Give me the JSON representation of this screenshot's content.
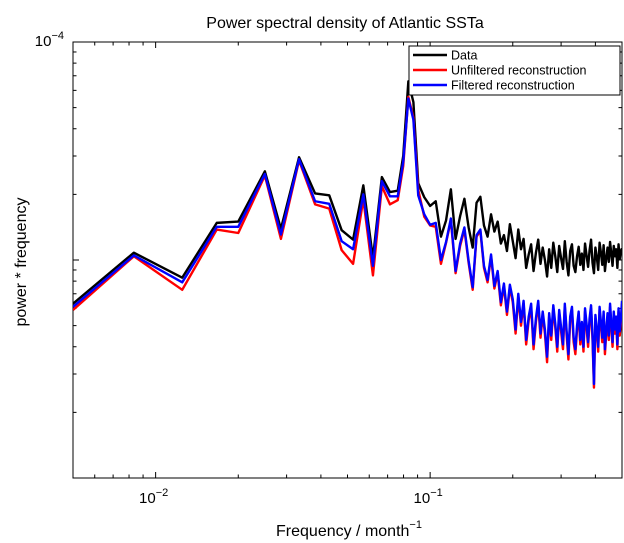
{
  "chart_data": {
    "type": "line",
    "title": "Power spectral density of Atlantic SSTa",
    "xlabel": "Frequency / month",
    "xlabel_sup": "−1",
    "ylabel": "power * frequency",
    "x_scale": "log",
    "y_scale": "log",
    "xlim": [
      0.005,
      0.5
    ],
    "ylim": [
      1e-06,
      0.0001
    ],
    "x_ticks": [
      {
        "value": 0.01,
        "base": "10",
        "exp": "−2"
      },
      {
        "value": 0.1,
        "base": "10",
        "exp": "−1"
      }
    ],
    "y_ticks": [
      {
        "value": 0.0001,
        "base": "10",
        "exp": "−4"
      }
    ],
    "grid": false,
    "legend_position": "top-right",
    "series": [
      {
        "name": "Data",
        "color": "#000000",
        "x": [
          0.005,
          0.00833,
          0.0125,
          0.0167,
          0.02,
          0.025,
          0.0286,
          0.0333,
          0.0381,
          0.0429,
          0.0476,
          0.0524,
          0.0571,
          0.0619,
          0.0667,
          0.0714,
          0.0762,
          0.0798,
          0.0833,
          0.0869,
          0.0905,
          0.0952,
          0.1,
          0.1048,
          0.1095,
          0.1143,
          0.119,
          0.1238,
          0.1286,
          0.1333,
          0.1381,
          0.1429,
          0.1476,
          0.1524,
          0.1571,
          0.1619,
          0.1667,
          0.1714,
          0.1762,
          0.181,
          0.1857,
          0.1905,
          0.1952,
          0.2,
          0.2048,
          0.2095,
          0.2143,
          0.219,
          0.2238,
          0.2286,
          0.2333,
          0.2381,
          0.2429,
          0.2476,
          0.2524,
          0.2571,
          0.2619,
          0.2667,
          0.2714,
          0.2762,
          0.281,
          0.2857,
          0.2905,
          0.2952,
          0.3,
          0.3048,
          0.3095,
          0.3143,
          0.319,
          0.3238,
          0.3286,
          0.3333,
          0.3381,
          0.3429,
          0.3476,
          0.3524,
          0.3571,
          0.3619,
          0.3667,
          0.3714,
          0.3762,
          0.381,
          0.3857,
          0.3905,
          0.3952,
          0.4,
          0.4048,
          0.4095,
          0.4143,
          0.419,
          0.4238,
          0.4286,
          0.4333,
          0.4381,
          0.4429,
          0.4476,
          0.4524,
          0.4571,
          0.4619,
          0.4667,
          0.4714,
          0.4762,
          0.481,
          0.4857,
          0.4905,
          0.4952,
          0.5
        ],
        "values": [
          6.3e-06,
          1.08e-05,
          8.3e-06,
          1.48e-05,
          1.5e-05,
          2.55e-05,
          1.39e-05,
          2.96e-05,
          2.02e-05,
          1.98e-05,
          1.37e-05,
          1.24e-05,
          2.2e-05,
          1.02e-05,
          2.4e-05,
          2.05e-05,
          2.08e-05,
          3e-05,
          6.6e-05,
          5.3e-05,
          2.25e-05,
          1.94e-05,
          1.77e-05,
          1.86e-05,
          1.28e-05,
          1.52e-05,
          2.11e-05,
          1.25e-05,
          1.59e-05,
          1.91e-05,
          1.41e-05,
          1.14e-05,
          1.83e-05,
          1.95e-05,
          1.44e-05,
          1.28e-05,
          1.62e-05,
          1.35e-05,
          1.5e-05,
          1.19e-05,
          1.3e-05,
          1.1e-05,
          1.46e-05,
          1.22e-05,
          1.02e-05,
          1.38e-05,
          1.12e-05,
          1.25e-05,
          9.2e-06,
          1.06e-05,
          1.18e-05,
          8.9e-06,
          1.08e-05,
          1.24e-05,
          9.6e-06,
          1.14e-05,
          1e-05,
          8.4e-06,
          1.12e-05,
          9.2e-06,
          1.2e-05,
          1.04e-05,
          8.8e-06,
          1.16e-05,
          1.02e-05,
          9.1e-06,
          1.22e-05,
          9.8e-06,
          8.5e-06,
          1.1e-05,
          1.18e-05,
          9.4e-06,
          8.8e-06,
          1.04e-05,
          1.15e-05,
          9.5e-06,
          1.07e-05,
          9e-06,
          1.19e-05,
          1.05e-05,
          9.3e-06,
          1.11e-05,
          1.24e-05,
          9.7e-06,
          8.7e-06,
          1.14e-05,
          1.03e-05,
          9e-06,
          1.2e-05,
          1.08e-05,
          9.5e-06,
          1.17e-05,
          8.9e-06,
          1.02e-05,
          1.14e-05,
          9.8e-06,
          1.21e-05,
          1.07e-05,
          9.4e-06,
          1.16e-05,
          1.04e-05,
          1.12e-05,
          9.2e-06,
          1.18e-05,
          1.01e-05,
          1.1e-05,
          1.13e-05
        ]
      },
      {
        "name": "Unfiltered reconstruction",
        "color": "#ff0000",
        "x": [
          0.005,
          0.00833,
          0.0125,
          0.0167,
          0.02,
          0.025,
          0.0286,
          0.0333,
          0.0381,
          0.0429,
          0.0476,
          0.0524,
          0.0571,
          0.0619,
          0.0667,
          0.0714,
          0.0762,
          0.0798,
          0.0833,
          0.0869,
          0.0905,
          0.0952,
          0.1,
          0.1048,
          0.1095,
          0.1143,
          0.119,
          0.1238,
          0.1286,
          0.1333,
          0.1381,
          0.1429,
          0.1476,
          0.1524,
          0.1571,
          0.1619,
          0.1667,
          0.1714,
          0.1762,
          0.181,
          0.1857,
          0.1905,
          0.1952,
          0.2,
          0.2048,
          0.2095,
          0.2143,
          0.219,
          0.2238,
          0.2286,
          0.2333,
          0.2381,
          0.2429,
          0.2476,
          0.2524,
          0.2571,
          0.2619,
          0.2667,
          0.2714,
          0.2762,
          0.281,
          0.2857,
          0.2905,
          0.2952,
          0.3,
          0.3048,
          0.3095,
          0.3143,
          0.319,
          0.3238,
          0.3286,
          0.3333,
          0.3381,
          0.3429,
          0.3476,
          0.3524,
          0.3571,
          0.3619,
          0.3667,
          0.3714,
          0.3762,
          0.381,
          0.3857,
          0.3905,
          0.3952,
          0.4,
          0.4048,
          0.4095,
          0.4143,
          0.419,
          0.4238,
          0.4286,
          0.4333,
          0.4381,
          0.4429,
          0.4476,
          0.4524,
          0.4571,
          0.4619,
          0.4667,
          0.4714,
          0.4762,
          0.481,
          0.4857,
          0.4905,
          0.4952,
          0.5
        ],
        "values": [
          5.9e-06,
          1.04e-05,
          7.3e-06,
          1.38e-05,
          1.33e-05,
          2.44e-05,
          1.25e-05,
          2.86e-05,
          1.8e-05,
          1.72e-05,
          1.11e-05,
          9.6e-06,
          1.9e-05,
          8.5e-06,
          2.18e-05,
          1.8e-05,
          1.88e-05,
          2.7e-05,
          5.6e-05,
          4.5e-05,
          2.1e-05,
          1.58e-05,
          1.44e-05,
          1.42e-05,
          9.6e-06,
          1.2e-05,
          1.52e-05,
          8.7e-06,
          1.16e-05,
          1.38e-05,
          9.7e-06,
          7.3e-06,
          1.28e-05,
          1.36e-05,
          9.2e-06,
          7.9e-06,
          1.04e-05,
          7.4e-06,
          8.7e-06,
          6.2e-06,
          7.6e-06,
          5.6e-06,
          7.5e-06,
          6.4e-06,
          4.6e-06,
          6.8e-06,
          5e-06,
          6.3e-06,
          4.1e-06,
          5.3e-06,
          6.1e-06,
          3.9e-06,
          5.2e-06,
          6.3e-06,
          4.4e-06,
          5.6e-06,
          4.6e-06,
          3.4e-06,
          5.5e-06,
          4.3e-06,
          6e-06,
          4.9e-06,
          3.8e-06,
          5.7e-06,
          4.7e-06,
          3.9e-06,
          6.1e-06,
          4.5e-06,
          3.5e-06,
          5.3e-06,
          5.9e-06,
          4.2e-06,
          3.7e-06,
          4.8e-06,
          5.6e-06,
          4.1e-06,
          5e-06,
          3.8e-06,
          5.8e-06,
          4.9e-06,
          4e-06,
          5.2e-06,
          6e-06,
          4.3e-06,
          2.6e-06,
          5.4e-06,
          4.6e-06,
          3.8e-06,
          5.9e-06,
          5e-06,
          4.2e-06,
          5.6e-06,
          3.7e-06,
          4.6e-06,
          5.5e-06,
          4.3e-06,
          6.1e-06,
          4.9e-06,
          4e-06,
          5.6e-06,
          4.6e-06,
          5.3e-06,
          3.9e-06,
          5.8e-06,
          4.5e-06,
          5.1e-06,
          6.3e-06
        ]
      },
      {
        "name": "Filtered reconstruction",
        "color": "#0000ff",
        "x": [
          0.005,
          0.00833,
          0.0125,
          0.0167,
          0.02,
          0.025,
          0.0286,
          0.0333,
          0.0381,
          0.0429,
          0.0476,
          0.0524,
          0.0571,
          0.0619,
          0.0667,
          0.0714,
          0.0762,
          0.0798,
          0.0833,
          0.0869,
          0.0905,
          0.0952,
          0.1,
          0.1048,
          0.1095,
          0.1143,
          0.119,
          0.1238,
          0.1286,
          0.1333,
          0.1381,
          0.1429,
          0.1476,
          0.1524,
          0.1571,
          0.1619,
          0.1667,
          0.1714,
          0.1762,
          0.181,
          0.1857,
          0.1905,
          0.1952,
          0.2,
          0.2048,
          0.2095,
          0.2143,
          0.219,
          0.2238,
          0.2286,
          0.2333,
          0.2381,
          0.2429,
          0.2476,
          0.2524,
          0.2571,
          0.2619,
          0.2667,
          0.2714,
          0.2762,
          0.281,
          0.2857,
          0.2905,
          0.2952,
          0.3,
          0.3048,
          0.3095,
          0.3143,
          0.319,
          0.3238,
          0.3286,
          0.3333,
          0.3381,
          0.3429,
          0.3476,
          0.3524,
          0.3571,
          0.3619,
          0.3667,
          0.3714,
          0.3762,
          0.381,
          0.3857,
          0.3905,
          0.3952,
          0.4,
          0.4048,
          0.4095,
          0.4143,
          0.419,
          0.4238,
          0.4286,
          0.4333,
          0.4381,
          0.4429,
          0.4476,
          0.4524,
          0.4571,
          0.4619,
          0.4667,
          0.4714,
          0.4762,
          0.481,
          0.4857,
          0.4905,
          0.4952,
          0.5
        ],
        "values": [
          6.1e-06,
          1.05e-05,
          7.9e-06,
          1.42e-05,
          1.42e-05,
          2.48e-05,
          1.31e-05,
          2.9e-05,
          1.86e-05,
          1.81e-05,
          1.22e-05,
          1.12e-05,
          2e-05,
          9.4e-06,
          2.3e-05,
          1.96e-05,
          1.96e-05,
          2.82e-05,
          5.5e-05,
          4.4e-05,
          1.98e-05,
          1.62e-05,
          1.45e-05,
          1.48e-05,
          1e-05,
          1.21e-05,
          1.55e-05,
          8.9e-06,
          1.19e-05,
          1.41e-05,
          9.9e-06,
          7.5e-06,
          1.3e-05,
          1.38e-05,
          9.4e-06,
          8.1e-06,
          1.06e-05,
          7.6e-06,
          8.9e-06,
          6.4e-06,
          7.8e-06,
          5.8e-06,
          7.7e-06,
          6.6e-06,
          4.8e-06,
          7e-06,
          5.2e-06,
          6.5e-06,
          4.3e-06,
          5.5e-06,
          6.3e-06,
          4.1e-06,
          5.4e-06,
          6.5e-06,
          4.6e-06,
          5.8e-06,
          4.8e-06,
          3.6e-06,
          5.7e-06,
          4.5e-06,
          6.2e-06,
          5.1e-06,
          4e-06,
          5.9e-06,
          4.9e-06,
          4.1e-06,
          6.3e-06,
          4.7e-06,
          3.7e-06,
          5.5e-06,
          6.1e-06,
          4.4e-06,
          3.9e-06,
          5e-06,
          5.8e-06,
          4.3e-06,
          5.2e-06,
          4e-06,
          6e-06,
          5.1e-06,
          4.2e-06,
          5.4e-06,
          6.2e-06,
          4.5e-06,
          2.7e-06,
          5.6e-06,
          4.8e-06,
          4e-06,
          6.1e-06,
          5.2e-06,
          4.4e-06,
          5.8e-06,
          3.9e-06,
          4.8e-06,
          5.7e-06,
          4.5e-06,
          6.3e-06,
          5.1e-06,
          4.2e-06,
          5.8e-06,
          4.8e-06,
          5.5e-06,
          4.1e-06,
          6e-06,
          4.7e-06,
          5.3e-06,
          6.5e-06
        ]
      }
    ]
  }
}
